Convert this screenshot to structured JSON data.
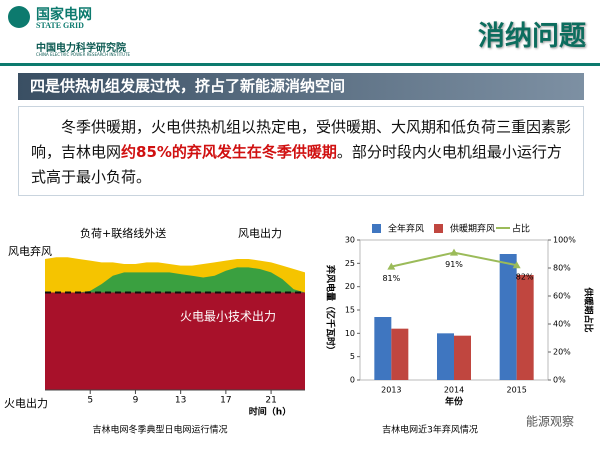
{
  "header": {
    "logo_cn": "国家电网",
    "logo_en": "STATE GRID",
    "institute_cn": "中国电力科学研究院",
    "institute_en": "CHINA ELECTRIC POWER RESEARCH INSTITUTE",
    "title": "消纳问题"
  },
  "banner": "四是供热机组发展过快，挤占了新能源消纳空间",
  "paragraph": [
    "冬季供暖期，火电供热机组以热定电，受供暖期、大风期和低负荷三重因素影响，吉林电网",
    "约85%的弃风发生在冬季供暖期",
    "。部分时段内火电机组最小运行方式高于最小负荷。"
  ],
  "watermark": "能源观察",
  "chart_data": [
    {
      "type": "area",
      "caption": "吉林电网冬季典型日电网运行情况",
      "x_label": "时间（h）",
      "x": [
        1,
        2,
        3,
        4,
        5,
        6,
        7,
        8,
        9,
        10,
        11,
        12,
        13,
        14,
        15,
        16,
        17,
        18,
        19,
        20,
        21,
        22,
        23,
        24
      ],
      "xlim": [
        1,
        24
      ],
      "xticks": [
        5,
        9,
        13,
        17,
        21
      ],
      "ylim": [
        0,
        100
      ],
      "series": [
        {
          "name": "风电弃风",
          "color": "#f5c400",
          "values": [
            78,
            79,
            79,
            78,
            77,
            76,
            76,
            75,
            75,
            76,
            76,
            75,
            74,
            74,
            75,
            76,
            77,
            78,
            78,
            77,
            76,
            74,
            72,
            70
          ]
        },
        {
          "name": "风电出力",
          "color": "#3aa040",
          "values": [
            58,
            58,
            58,
            58,
            59,
            63,
            68,
            70,
            70,
            70,
            70,
            70,
            69,
            68,
            67,
            68,
            71,
            73,
            73,
            72,
            70,
            66,
            60,
            58
          ]
        },
        {
          "name": "火电最小技术出力",
          "color": "#a8112a",
          "values": [
            58,
            58,
            58,
            58,
            58,
            58,
            58,
            58,
            58,
            58,
            58,
            58,
            58,
            58,
            58,
            58,
            58,
            58,
            58,
            58,
            58,
            58,
            58,
            58
          ]
        }
      ],
      "annotations": [
        "负荷+联络线外送",
        "火电出力"
      ]
    },
    {
      "type": "bar_line",
      "caption": "吉林电网近3年弃风情况",
      "x_label": "年份",
      "y_label": "弃风电量（亿千瓦时）",
      "y2_label": "供暖期占比",
      "categories": [
        "2013",
        "2014",
        "2015"
      ],
      "ylim": [
        0,
        30
      ],
      "yticks": [
        0,
        5,
        10,
        15,
        20,
        25,
        30
      ],
      "y2lim": [
        0,
        100
      ],
      "y2ticks": [
        {
          "value": 0,
          "label": "0%"
        },
        {
          "value": 20,
          "label": "20%"
        },
        {
          "value": 40,
          "label": "40%"
        },
        {
          "value": 60,
          "label": "60%"
        },
        {
          "value": 80,
          "label": "80%"
        },
        {
          "value": 100,
          "label": "100%"
        }
      ],
      "series": [
        {
          "name": "全年弃风",
          "color": "#3f76c0",
          "values": [
            13.5,
            10,
            27
          ]
        },
        {
          "name": "供暖期弃风",
          "color": "#c0463f",
          "values": [
            11,
            9.5,
            22.5
          ]
        },
        {
          "name": "占比",
          "color": "#9bbb59",
          "axis": "y2",
          "values": [
            81,
            91,
            82
          ],
          "value_labels": [
            "81%",
            "91%",
            "82%"
          ]
        }
      ]
    }
  ]
}
